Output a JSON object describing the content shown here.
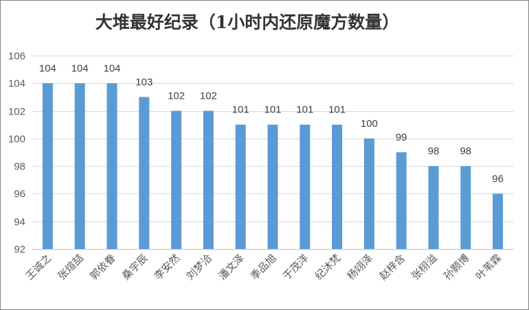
{
  "chart_data": {
    "type": "bar",
    "title": "大堆最好纪录（1小时内还原魔方数量）",
    "xlabel": "",
    "ylabel": "",
    "categories": [
      "王诚之",
      "张煊喆",
      "郭依眷",
      "桑宇辰",
      "李安然",
      "刘梦洽",
      "潘文泽",
      "季品旭",
      "于茂洋",
      "纪沐梵",
      "杨翊泽",
      "赵梓含",
      "张栩溢",
      "孙颢博",
      "叶苇霖"
    ],
    "values": [
      104,
      104,
      104,
      103,
      102,
      102,
      101,
      101,
      101,
      101,
      100,
      99,
      98,
      98,
      96
    ],
    "ylim": [
      92,
      106
    ],
    "yticks": [
      92,
      94,
      96,
      98,
      100,
      102,
      104,
      106
    ],
    "grid": true,
    "legend": "none",
    "bar_color": "#5b9bd5"
  }
}
